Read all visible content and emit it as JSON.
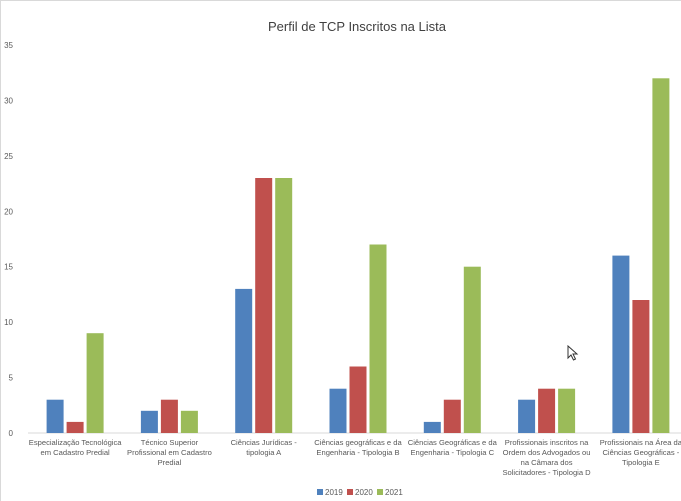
{
  "chart_data": {
    "type": "bar",
    "title": "Perfil de TCP Inscritos na Lista",
    "xlabel": "",
    "ylabel": "",
    "ylim": [
      0,
      35
    ],
    "yticks": [
      0,
      5,
      10,
      15,
      20,
      25,
      30,
      35
    ],
    "grid": false,
    "legend_position": "bottom",
    "categories": [
      [
        "Especialização Tecnológica",
        "em Cadastro Predial"
      ],
      [
        "Técnico Superior",
        "Profissional em Cadastro",
        "Predial"
      ],
      [
        "Ciências Jurídicas -",
        "tipologia A"
      ],
      [
        "Ciências geográficas e da",
        "Engenharia - Tipologia B"
      ],
      [
        "Ciências Geográficas e da",
        "Engenharia - Tipologia C"
      ],
      [
        "Profissionais inscritos na",
        "Ordem dos Advogados ou",
        "na Câmara dos",
        "Solicitadores - Tipologia D"
      ],
      [
        "Profissionais na Área da",
        "Ciências Geográficas -",
        "Tipologia E"
      ]
    ],
    "series": [
      {
        "name": "2019",
        "color": "#4f81bd",
        "values": [
          3,
          2,
          13,
          4,
          1,
          3,
          16
        ]
      },
      {
        "name": "2020",
        "color": "#c0504d",
        "values": [
          1,
          3,
          23,
          6,
          3,
          4,
          12
        ]
      },
      {
        "name": "2021",
        "color": "#9bbb59",
        "values": [
          9,
          2,
          23,
          17,
          15,
          4,
          32
        ]
      }
    ]
  }
}
